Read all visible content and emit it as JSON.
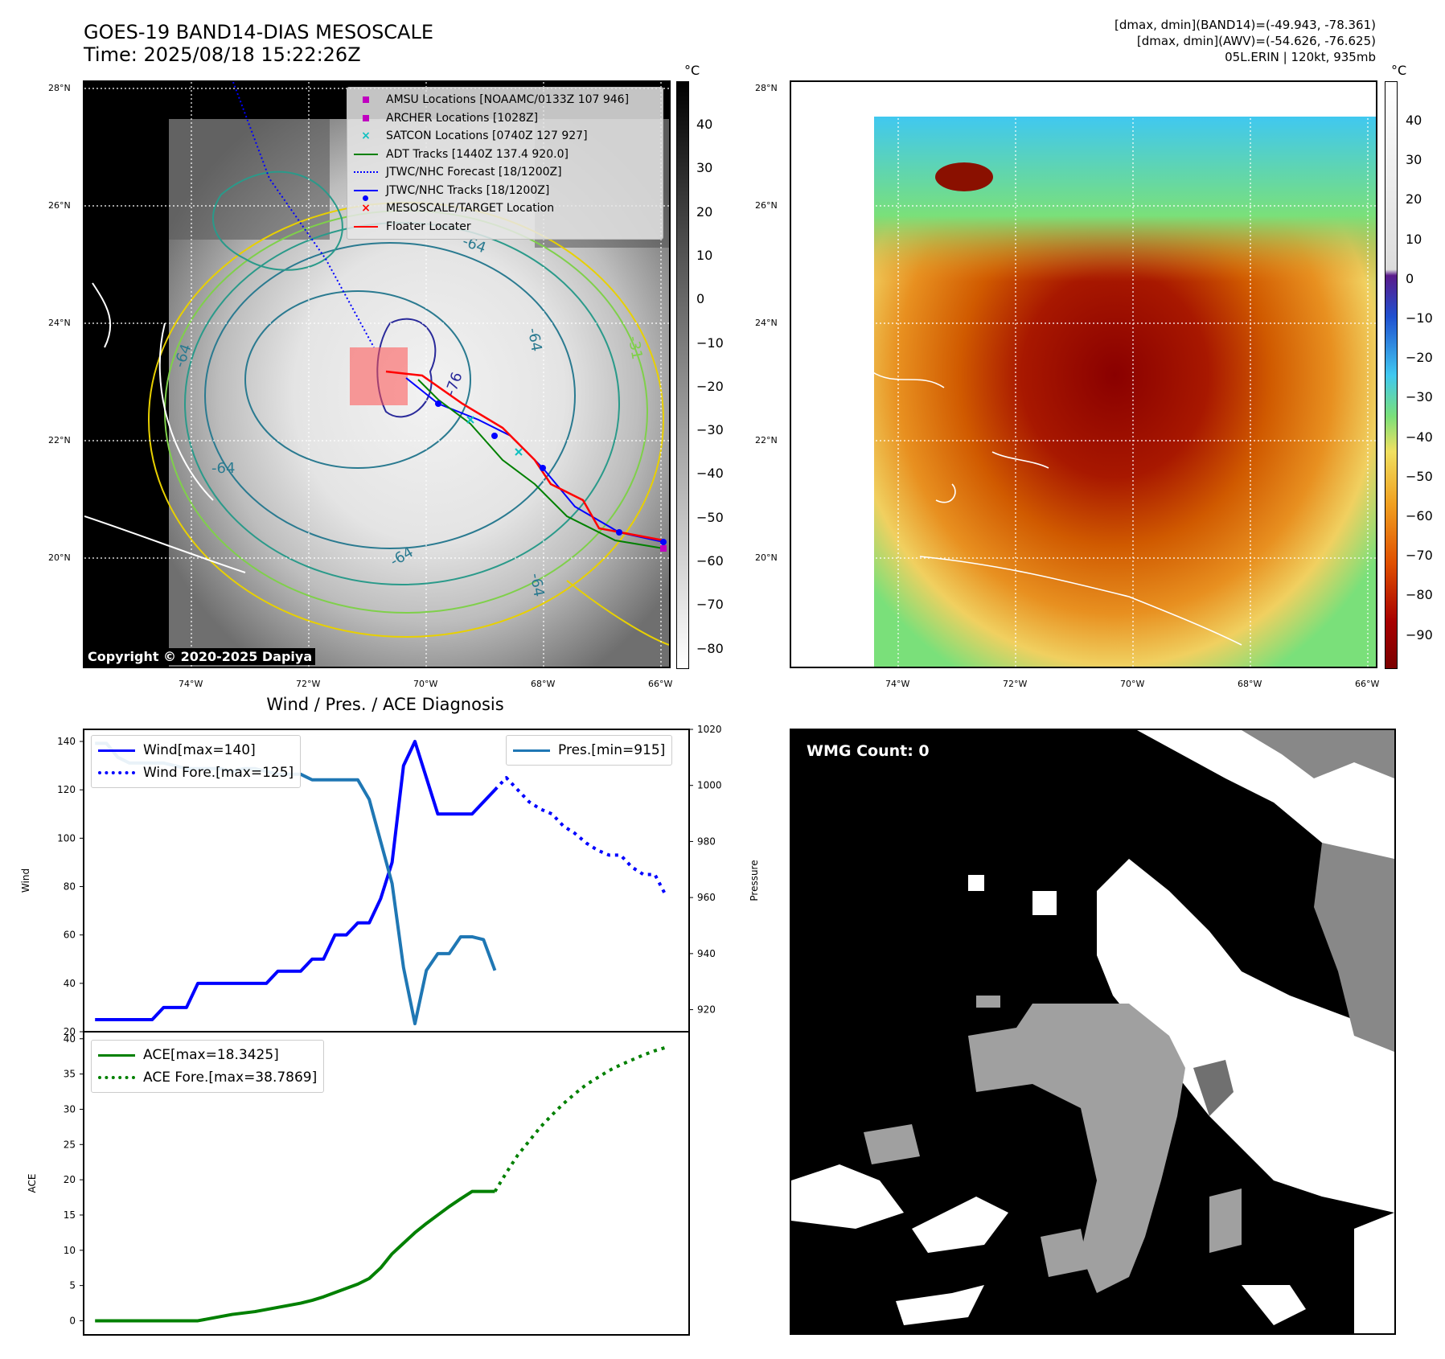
{
  "header": {
    "title_line1": "GOES-19 BAND14-DIAS MESOSCALE",
    "title_line2": "Time: 2025/08/18 15:22:26Z",
    "info_line1": "[dmax, dmin](BAND14)=(-49.943, -78.361)",
    "info_line2": "[dmax, dmin](AWV)=(-54.626, -76.625)",
    "info_line3": "05L.ERIN | 120kt, 935mb"
  },
  "maps": {
    "lat_labels": [
      "28°N",
      "26°N",
      "24°N",
      "22°N",
      "20°N"
    ],
    "lon_labels": [
      "74°W",
      "72°W",
      "70°W",
      "68°W",
      "66°W"
    ],
    "copyright": "Copyright © 2020-2025 Dapiya",
    "contour_labels": [
      "-64",
      "-64",
      "-64",
      "-64",
      "-76",
      "-64",
      "-64",
      "-31"
    ],
    "legend": [
      {
        "label": "AMSU Locations [NOAAMC/0133Z 107 946]",
        "color": "#c000c0",
        "sym": "square"
      },
      {
        "label": "ARCHER Locations [1028Z]",
        "color": "#c000c0",
        "sym": "square"
      },
      {
        "label": "SATCON Locations [0740Z 127 927]",
        "color": "#10c0c0",
        "sym": "x"
      },
      {
        "label": "ADT Tracks [1440Z 137.4 920.0]",
        "color": "#008000",
        "sym": "line"
      },
      {
        "label": "JTWC/NHC Forecast [18/1200Z]",
        "color": "#0000ff",
        "sym": "dotted"
      },
      {
        "label": "JTWC/NHC Tracks [18/1200Z]",
        "color": "#0000ff",
        "sym": "dotline"
      },
      {
        "label": "MESOSCALE/TARGET Location",
        "color": "#ff0000",
        "sym": "x"
      },
      {
        "label": "Floater Locater",
        "color": "#ff0000",
        "sym": "line"
      }
    ],
    "cbar_unit": "°C",
    "cbar1_ticks": [
      "40",
      "30",
      "20",
      "10",
      "0",
      "−10",
      "−20",
      "−30",
      "−40",
      "−50",
      "−60",
      "−70",
      "−80"
    ],
    "cbar2_ticks": [
      "40",
      "30",
      "20",
      "10",
      "0",
      "−10",
      "−20",
      "−30",
      "−40",
      "−50",
      "−60",
      "−70",
      "−80",
      "−90"
    ]
  },
  "wmg": {
    "label": "WMG Count: 0"
  },
  "chart_data": [
    {
      "type": "line",
      "title": "Wind / Pres. / ACE Diagnosis",
      "ylabel": "Wind",
      "y2label": "Pressure",
      "ylim": [
        20,
        145
      ],
      "y2lim": [
        915,
        1020
      ],
      "yticks": [
        "140",
        "120",
        "100",
        "80",
        "60",
        "40",
        "20"
      ],
      "y2ticks": [
        "1020",
        "1000",
        "980",
        "960",
        "940",
        "920"
      ],
      "series": [
        {
          "name": "Wind[max=140]",
          "style": "solid",
          "color": "#0000ff",
          "x": [
            0,
            1,
            2,
            3,
            4,
            5,
            6,
            7,
            8,
            9,
            10,
            11,
            12,
            13,
            14,
            15,
            16,
            17,
            18,
            19,
            20,
            21,
            22,
            23,
            24,
            25,
            26,
            27,
            28,
            29,
            30,
            31,
            32,
            33,
            34,
            35
          ],
          "values": [
            25,
            25,
            25,
            25,
            25,
            25,
            30,
            30,
            30,
            40,
            40,
            40,
            40,
            40,
            40,
            40,
            45,
            45,
            45,
            50,
            50,
            60,
            60,
            65,
            65,
            75,
            90,
            130,
            140,
            125,
            110,
            110,
            110,
            110,
            115,
            120
          ]
        },
        {
          "name": "Wind Fore.[max=125]",
          "style": "dotted",
          "color": "#0000ff",
          "x": [
            35,
            36,
            37,
            38,
            39,
            40,
            41,
            42,
            43,
            44,
            45,
            46,
            47,
            48,
            49,
            50
          ],
          "values": [
            120,
            125,
            120,
            115,
            112,
            110,
            105,
            102,
            98,
            95,
            93,
            93,
            88,
            85,
            85,
            76
          ]
        },
        {
          "name": "Pres.[min=915]",
          "style": "solid",
          "color": "#1f77b4",
          "axis": "right",
          "x": [
            0,
            1,
            2,
            3,
            4,
            5,
            6,
            7,
            8,
            9,
            10,
            11,
            12,
            13,
            14,
            15,
            16,
            17,
            18,
            19,
            20,
            21,
            22,
            23,
            24,
            25,
            26,
            27,
            28,
            29,
            30,
            31,
            32,
            33,
            34,
            35
          ],
          "values": [
            1015,
            1015,
            1010,
            1008,
            1008,
            1008,
            1008,
            1007,
            1006,
            1006,
            1006,
            1006,
            1005,
            1006,
            1006,
            1005,
            1004,
            1004,
            1004,
            1002,
            1002,
            1002,
            1002,
            1002,
            995,
            980,
            965,
            935,
            915,
            934,
            940,
            940,
            946,
            946,
            945,
            934
          ]
        }
      ]
    },
    {
      "type": "line",
      "ylabel": "ACE",
      "ylim": [
        -2,
        41
      ],
      "yticks": [
        "40",
        "35",
        "30",
        "25",
        "20",
        "15",
        "10",
        "5",
        "0"
      ],
      "series": [
        {
          "name": "ACE[max=18.3425]",
          "style": "solid",
          "color": "#008000",
          "x": [
            0,
            1,
            2,
            3,
            4,
            5,
            6,
            7,
            8,
            9,
            10,
            11,
            12,
            13,
            14,
            15,
            16,
            17,
            18,
            19,
            20,
            21,
            22,
            23,
            24,
            25,
            26,
            27,
            28,
            29,
            30,
            31,
            32,
            33,
            34,
            35
          ],
          "values": [
            0,
            0,
            0,
            0,
            0,
            0,
            0,
            0,
            0,
            0,
            0.3,
            0.6,
            0.9,
            1.1,
            1.3,
            1.6,
            1.9,
            2.2,
            2.5,
            2.9,
            3.4,
            4,
            4.6,
            5.2,
            6,
            7.5,
            9.5,
            11,
            12.5,
            13.8,
            15,
            16.2,
            17.3,
            18.34,
            18.34,
            18.34
          ]
        },
        {
          "name": "ACE Fore.[max=38.7869]",
          "style": "dotted",
          "color": "#008000",
          "x": [
            35,
            36,
            37,
            38,
            39,
            40,
            41,
            42,
            43,
            44,
            45,
            46,
            47,
            48,
            49,
            50
          ],
          "values": [
            18.34,
            21,
            23.5,
            25.5,
            27.5,
            29.2,
            30.8,
            32.2,
            33.5,
            34.5,
            35.5,
            36.3,
            37,
            37.7,
            38.3,
            38.79
          ]
        }
      ]
    }
  ]
}
